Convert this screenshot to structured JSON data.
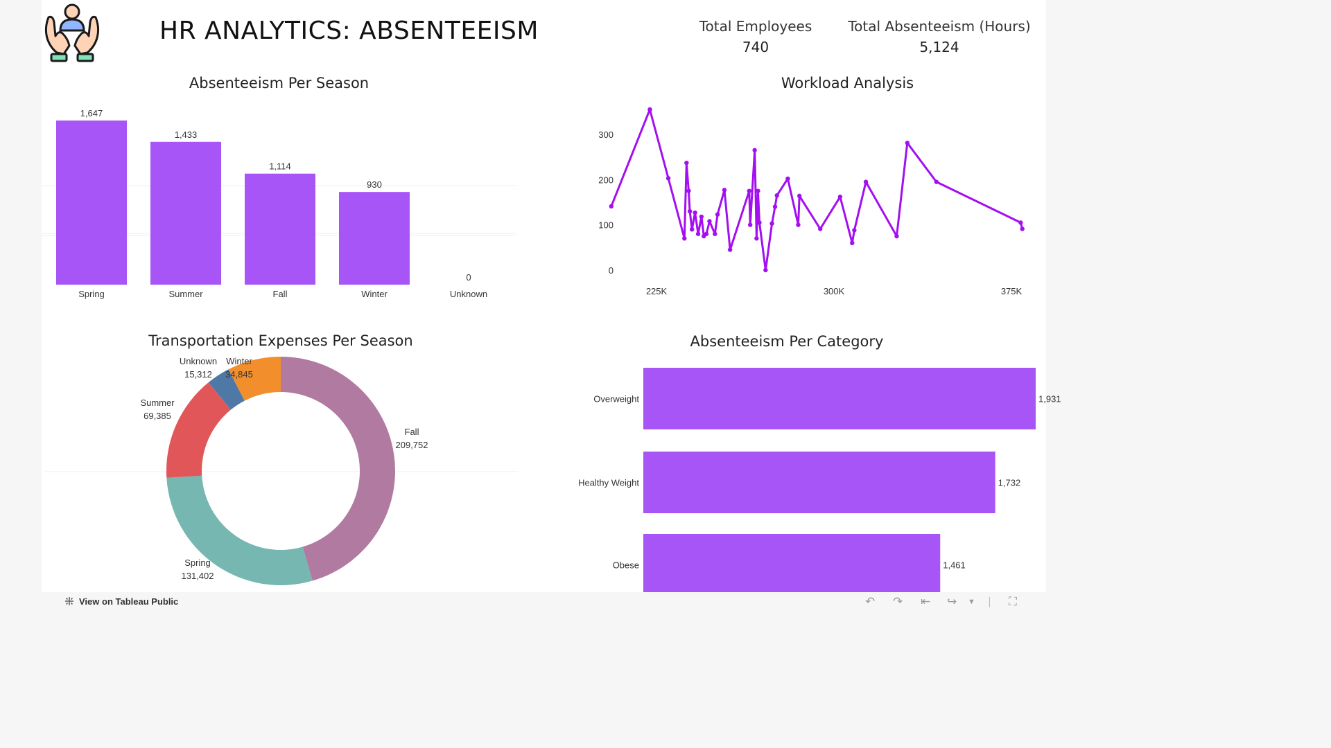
{
  "header": {
    "title": "HR ANALYTICS: ABSENTEEISM",
    "logo_icon": "caring-hands-person-icon"
  },
  "kpis": [
    {
      "label": "Total Employees",
      "value": "740"
    },
    {
      "label": "Total Absenteeism (Hours)",
      "value": "5,124"
    }
  ],
  "colors": {
    "bar": "#a855f7",
    "line": "#a30ff0",
    "fall": "#b07aa1",
    "spring": "#76b7b2",
    "summer": "#e15759",
    "unknown": "#4e79a7",
    "winter": "#f28e2b"
  },
  "footer": {
    "link_label": "View on Tableau Public",
    "icons": [
      "undo-icon",
      "redo-icon",
      "revert-icon",
      "share-icon",
      "dropdown-icon",
      "fullscreen-icon"
    ]
  },
  "chart_data": [
    {
      "id": "season",
      "type": "bar",
      "title": "Absenteeism Per Season",
      "categories": [
        "Spring",
        "Summer",
        "Fall",
        "Winter",
        "Unknown"
      ],
      "values": [
        1647,
        1433,
        1114,
        930,
        0
      ],
      "value_labels": [
        "1,647",
        "1,433",
        "1,114",
        "930",
        "0"
      ],
      "ylim": [
        0,
        1700
      ],
      "grid": true
    },
    {
      "id": "workload",
      "type": "line",
      "title": "Workload Analysis",
      "xlim": [
        200000,
        380000
      ],
      "ylim": [
        -10,
        360
      ],
      "x_ticks": [
        225000,
        300000,
        375000
      ],
      "x_tick_labels": [
        "225K",
        "300K",
        "375K"
      ],
      "y_ticks": [
        0,
        100,
        200,
        300
      ],
      "y_tick_labels": [
        "0",
        "100",
        "200",
        "300"
      ],
      "x": [
        205900,
        222200,
        230000,
        236800,
        237700,
        238600,
        239100,
        240000,
        241300,
        242600,
        244000,
        245000,
        246100,
        247400,
        249700,
        250800,
        253700,
        256100,
        264200,
        264600,
        266500,
        267300,
        267900,
        268500,
        271100,
        273800,
        275100,
        275900,
        280500,
        284900,
        285400,
        294200,
        302600,
        307700,
        308600,
        313500,
        326500,
        331000,
        343300,
        378900,
        379600
      ],
      "y": [
        141,
        355,
        203,
        70,
        237,
        175,
        130,
        90,
        127,
        80,
        118,
        75,
        80,
        108,
        80,
        123,
        177,
        45,
        175,
        100,
        265,
        70,
        175,
        105,
        0,
        103,
        140,
        165,
        202,
        100,
        164,
        91,
        162,
        60,
        88,
        195,
        75,
        281,
        195,
        105,
        91
      ]
    },
    {
      "id": "transport",
      "type": "pie",
      "title": "Transportation Expenses Per Season",
      "categories": [
        "Fall",
        "Spring",
        "Summer",
        "Unknown",
        "Winter"
      ],
      "values": [
        209752,
        131402,
        69385,
        15312,
        34845
      ],
      "value_labels": [
        "209,752",
        "131,402",
        "69,385",
        "15,312",
        "34,845"
      ]
    },
    {
      "id": "category",
      "type": "bar",
      "orientation": "horizontal",
      "title": "Absenteeism Per Category",
      "categories": [
        "Overweight",
        "Healthy Weight",
        "Obese"
      ],
      "values": [
        1931,
        1732,
        1461
      ],
      "value_labels": [
        "1,931",
        "1,732",
        "1,461"
      ],
      "xlim": [
        0,
        1931
      ]
    }
  ]
}
